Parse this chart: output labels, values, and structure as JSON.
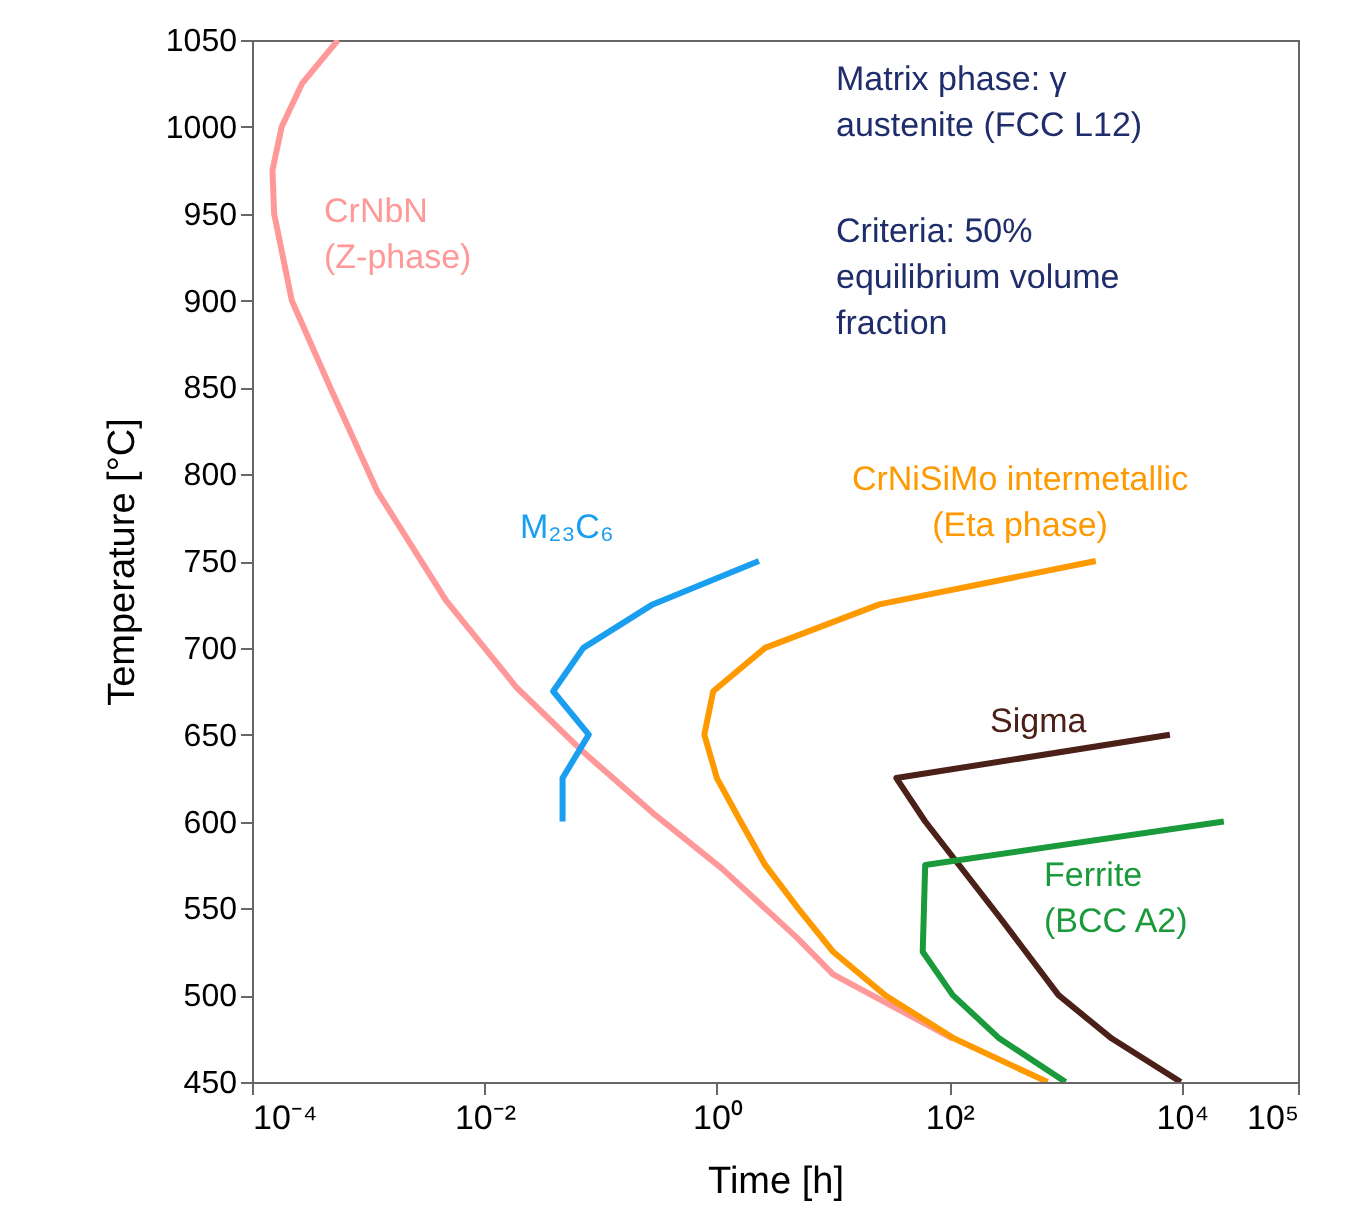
{
  "chart_data": {
    "type": "line",
    "xlabel": "Time [h]",
    "ylabel": "Temperature [°C]",
    "log": "x",
    "xlim": [
      0.0001,
      100000
    ],
    "ylim": [
      450,
      1050
    ],
    "xticks": [
      {
        "value": 0.0001,
        "label": "10⁻⁴"
      },
      {
        "value": 0.01,
        "label": "10⁻²"
      },
      {
        "value": 1,
        "label": "10⁰"
      },
      {
        "value": 100,
        "label": "10²"
      },
      {
        "value": 10000,
        "label": "10⁴"
      },
      {
        "value": 100000,
        "label": "10⁵"
      }
    ],
    "yticks": [
      450,
      500,
      550,
      600,
      650,
      700,
      750,
      800,
      850,
      900,
      950,
      1000,
      1050
    ],
    "series": [
      {
        "name": "CrNbN\n(Z-phase)",
        "color": "#ff9999",
        "x": [
          0.00055,
          0.00027,
          0.00018,
          0.00015,
          0.000155,
          0.00022,
          0.00047,
          0.0012,
          0.0047,
          0.019,
          0.071,
          0.28,
          1.1,
          4.9,
          10,
          107
        ],
        "values": [
          1050,
          1025,
          1000,
          975,
          950,
          900,
          850,
          790,
          727,
          677,
          640,
          605,
          573,
          533,
          512,
          475
        ]
      },
      {
        "name": "M₂₃C₆",
        "color": "#1a9ff0",
        "x": [
          2.3,
          0.28,
          0.071,
          0.039,
          0.079,
          0.047,
          0.047
        ],
        "values": [
          750,
          725,
          700,
          675,
          650,
          625,
          600
        ]
      },
      {
        "name": "CrNiSiMo intermetallic\n(Eta phase)",
        "color": "#ff9900",
        "x": [
          1820,
          25,
          2.6,
          0.93,
          0.78,
          1.0,
          1.6,
          2.6,
          5.0,
          10,
          28,
          110,
          700
        ],
        "values": [
          750,
          725,
          700,
          675,
          650,
          625,
          600,
          575,
          550,
          525,
          500,
          475,
          450
        ]
      },
      {
        "name": "Sigma",
        "color": "#4a2018",
        "x": [
          7900,
          35,
          62,
          270,
          870,
          2500,
          9800
        ],
        "values": [
          650,
          625,
          600,
          545,
          500,
          475,
          450
        ]
      },
      {
        "name": "Ferrite\n(BCC A2)",
        "color": "#1a9a3a",
        "x": [
          23000,
          62,
          59,
          107,
          270,
          1000
        ],
        "values": [
          600,
          575,
          525,
          500,
          475,
          450
        ]
      }
    ],
    "annotations": [
      "Matrix phase: γ\naustenite (FCC L12)",
      "Criteria: 50%\nequilibrium volume\nfraction"
    ]
  }
}
